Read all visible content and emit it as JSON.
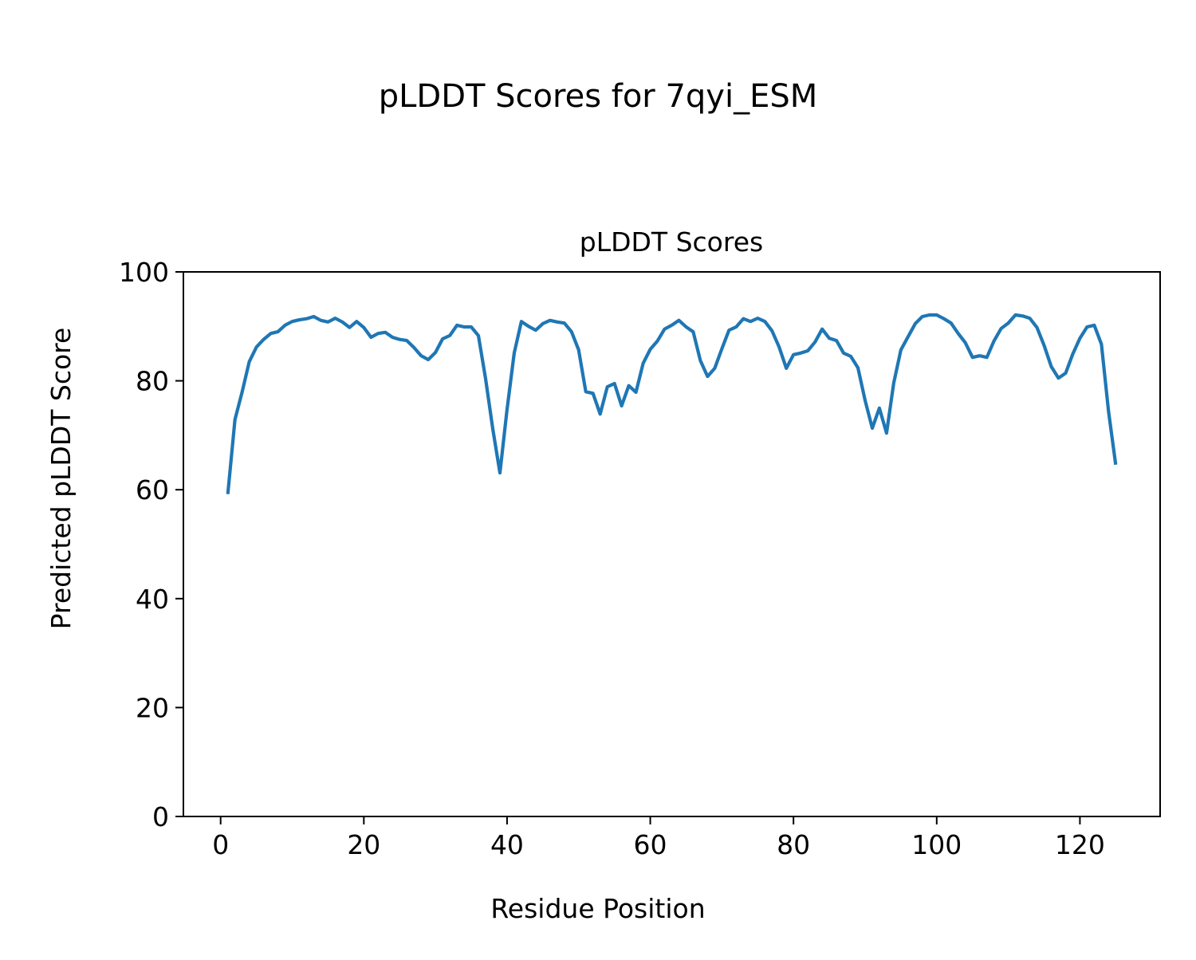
{
  "figure_title": "pLDDT Scores for 7qyi_ESM",
  "chart_data": {
    "type": "line",
    "title": "pLDDT Scores",
    "xlabel": "Residue Position",
    "ylabel": "Predicted pLDDT Score",
    "xlim": [
      -5.2,
      131.2
    ],
    "ylim": [
      0,
      100
    ],
    "xticks": [
      0,
      20,
      40,
      60,
      80,
      100,
      120
    ],
    "yticks": [
      0,
      20,
      40,
      60,
      80,
      100
    ],
    "grid": false,
    "line_color": "#1f77b4",
    "x_start": 1,
    "values": [
      59.2,
      72.9,
      77.9,
      83.5,
      86.2,
      87.6,
      88.7,
      89.0,
      90.2,
      90.9,
      91.2,
      91.4,
      91.8,
      91.1,
      90.8,
      91.5,
      90.8,
      89.8,
      90.9,
      89.8,
      88.0,
      88.7,
      88.9,
      88.0,
      87.6,
      87.4,
      86.1,
      84.6,
      83.9,
      85.2,
      87.7,
      88.3,
      90.2,
      89.9,
      89.9,
      88.3,
      80.4,
      71.2,
      63.1,
      74.7,
      85.1,
      90.9,
      90.0,
      89.3,
      90.5,
      91.1,
      90.8,
      90.6,
      89.0,
      85.7,
      78.0,
      77.7,
      73.9,
      78.9,
      79.5,
      75.4,
      79.1,
      77.9,
      83.2,
      85.8,
      87.3,
      89.5,
      90.2,
      91.1,
      89.9,
      89.0,
      83.7,
      80.8,
      82.3,
      85.9,
      89.3,
      89.9,
      91.4,
      90.9,
      91.5,
      90.9,
      89.2,
      86.2,
      82.3,
      84.8,
      85.1,
      85.5,
      87.1,
      89.5,
      87.8,
      87.4,
      85.1,
      84.5,
      82.4,
      76.4,
      71.3,
      75.0,
      70.4,
      79.6,
      85.7,
      88.1,
      90.5,
      91.8,
      92.1,
      92.1,
      91.4,
      90.6,
      88.7,
      87.0,
      84.3,
      84.6,
      84.3,
      87.3,
      89.6,
      90.6,
      92.1,
      91.9,
      91.5,
      89.8,
      86.5,
      82.6,
      80.5,
      81.4,
      84.9,
      87.8,
      89.9,
      90.2,
      86.7,
      74.4,
      64.6
    ]
  }
}
